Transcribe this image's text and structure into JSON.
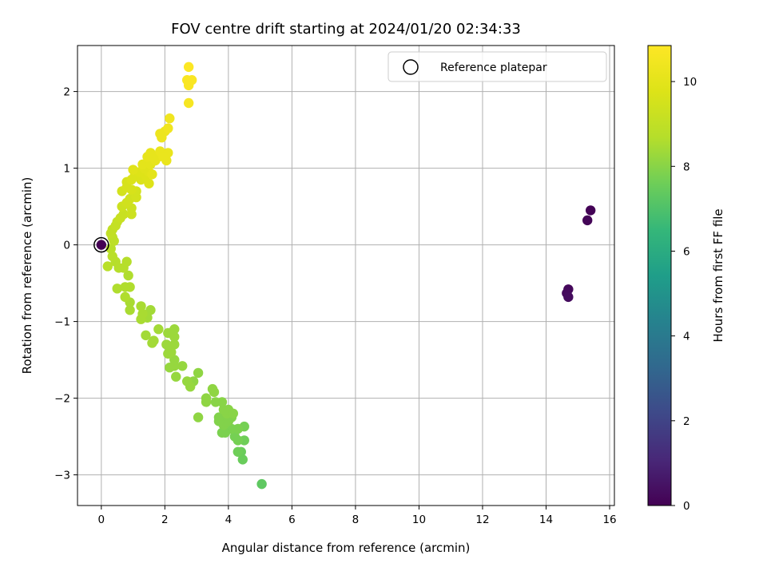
{
  "chart_data": {
    "type": "scatter",
    "title": "FOV centre drift starting at 2024/01/20 02:34:33",
    "xlabel": "Angular distance from reference (arcmin)",
    "ylabel": "Rotation from reference (arcmin)",
    "xlim": [
      -0.75,
      16.15
    ],
    "ylim": [
      -3.4,
      2.6
    ],
    "xticks": [
      0,
      2,
      4,
      6,
      8,
      10,
      12,
      14,
      16
    ],
    "yticks": [
      -3,
      -2,
      -1,
      0,
      1,
      2
    ],
    "grid": true,
    "legend": {
      "position": "top-right",
      "entries": [
        "Reference platepar"
      ]
    },
    "reference_point": {
      "x": 0,
      "y": 0
    },
    "colorbar": {
      "label": "Hours from first FF file",
      "colormap": "viridis",
      "range": [
        0,
        10.85
      ],
      "ticks": [
        0,
        2,
        4,
        6,
        8,
        10
      ]
    },
    "points": [
      [
        0.0,
        0.0,
        0.0
      ],
      [
        15.4,
        0.45,
        0.05
      ],
      [
        15.3,
        0.32,
        0.1
      ],
      [
        14.7,
        -0.58,
        0.2
      ],
      [
        14.65,
        -0.63,
        0.25
      ],
      [
        14.7,
        -0.68,
        0.3
      ],
      [
        5.05,
        -3.12,
        7.3
      ],
      [
        4.45,
        -2.8,
        7.5
      ],
      [
        4.4,
        -2.7,
        7.5
      ],
      [
        4.3,
        -2.7,
        7.6
      ],
      [
        4.5,
        -2.55,
        7.6
      ],
      [
        4.3,
        -2.55,
        7.7
      ],
      [
        4.2,
        -2.5,
        7.7
      ],
      [
        4.5,
        -2.37,
        7.7
      ],
      [
        4.3,
        -2.4,
        7.8
      ],
      [
        4.1,
        -2.4,
        7.8
      ],
      [
        3.9,
        -2.45,
        7.8
      ],
      [
        3.8,
        -2.45,
        7.8
      ],
      [
        3.85,
        -2.35,
        7.9
      ],
      [
        4.0,
        -2.3,
        7.9
      ],
      [
        3.9,
        -2.3,
        7.9
      ],
      [
        4.1,
        -2.25,
        7.9
      ],
      [
        3.7,
        -2.3,
        7.9
      ],
      [
        3.7,
        -2.25,
        7.9
      ],
      [
        3.95,
        -2.2,
        8.0
      ],
      [
        4.0,
        -2.15,
        8.0
      ],
      [
        4.15,
        -2.2,
        8.0
      ],
      [
        3.85,
        -2.15,
        8.0
      ],
      [
        3.8,
        -2.05,
        8.0
      ],
      [
        3.6,
        -2.05,
        8.0
      ],
      [
        3.55,
        -1.92,
        8.1
      ],
      [
        3.5,
        -1.88,
        8.1
      ],
      [
        3.3,
        -2.0,
        8.1
      ],
      [
        3.3,
        -2.05,
        8.1
      ],
      [
        3.05,
        -2.25,
        8.1
      ],
      [
        3.05,
        -1.67,
        8.1
      ],
      [
        2.9,
        -1.78,
        8.1
      ],
      [
        2.8,
        -1.85,
        8.2
      ],
      [
        2.7,
        -1.78,
        8.2
      ],
      [
        2.55,
        -1.58,
        8.2
      ],
      [
        2.35,
        -1.72,
        8.2
      ],
      [
        2.3,
        -1.58,
        8.2
      ],
      [
        2.3,
        -1.5,
        8.2
      ],
      [
        2.15,
        -1.6,
        8.2
      ],
      [
        2.3,
        -1.3,
        8.3
      ],
      [
        2.3,
        -1.2,
        8.3
      ],
      [
        2.3,
        -1.1,
        8.3
      ],
      [
        2.2,
        -1.4,
        8.3
      ],
      [
        2.1,
        -1.42,
        8.3
      ],
      [
        2.05,
        -1.3,
        8.3
      ],
      [
        2.1,
        -1.15,
        8.3
      ],
      [
        1.8,
        -1.1,
        8.4
      ],
      [
        1.65,
        -1.25,
        8.4
      ],
      [
        1.6,
        -1.28,
        8.4
      ],
      [
        1.4,
        -1.18,
        8.4
      ],
      [
        1.55,
        -0.85,
        8.4
      ],
      [
        1.45,
        -0.95,
        8.4
      ],
      [
        1.3,
        -0.9,
        8.5
      ],
      [
        1.25,
        -0.8,
        8.5
      ],
      [
        1.25,
        -0.97,
        8.5
      ],
      [
        0.9,
        -0.85,
        8.5
      ],
      [
        0.9,
        -0.75,
        8.5
      ],
      [
        0.75,
        -0.68,
        8.6
      ],
      [
        0.9,
        -0.55,
        8.6
      ],
      [
        0.75,
        -0.55,
        8.6
      ],
      [
        0.5,
        -0.57,
        8.6
      ],
      [
        0.85,
        -0.4,
        8.6
      ],
      [
        0.7,
        -0.3,
        8.7
      ],
      [
        0.55,
        -0.3,
        8.7
      ],
      [
        0.8,
        -0.22,
        8.7
      ],
      [
        0.45,
        -0.22,
        8.7
      ],
      [
        0.35,
        -0.15,
        8.8
      ],
      [
        0.2,
        -0.28,
        8.8
      ],
      [
        0.3,
        -0.05,
        8.8
      ],
      [
        0.4,
        0.05,
        8.9
      ],
      [
        0.35,
        0.1,
        8.9
      ],
      [
        0.3,
        0.15,
        9.0
      ],
      [
        0.35,
        0.2,
        9.0
      ],
      [
        0.45,
        0.25,
        9.1
      ],
      [
        0.5,
        0.3,
        9.1
      ],
      [
        0.6,
        0.35,
        9.2
      ],
      [
        0.7,
        0.4,
        9.2
      ],
      [
        0.95,
        0.4,
        9.3
      ],
      [
        0.95,
        0.48,
        9.3
      ],
      [
        0.65,
        0.5,
        9.3
      ],
      [
        0.8,
        0.55,
        9.4
      ],
      [
        0.9,
        0.6,
        9.4
      ],
      [
        1.1,
        0.62,
        9.5
      ],
      [
        1.1,
        0.7,
        9.5
      ],
      [
        0.65,
        0.7,
        9.5
      ],
      [
        0.8,
        0.75,
        9.6
      ],
      [
        0.95,
        0.72,
        9.6
      ],
      [
        0.8,
        0.82,
        9.6
      ],
      [
        0.95,
        0.85,
        9.7
      ],
      [
        1.05,
        0.9,
        9.7
      ],
      [
        1.25,
        0.85,
        9.7
      ],
      [
        1.5,
        0.8,
        9.8
      ],
      [
        1.4,
        0.9,
        9.8
      ],
      [
        1.2,
        0.95,
        9.8
      ],
      [
        1.0,
        0.98,
        9.9
      ],
      [
        1.35,
        1.0,
        9.9
      ],
      [
        1.5,
        0.95,
        9.9
      ],
      [
        1.6,
        0.92,
        10.0
      ],
      [
        1.3,
        1.05,
        10.0
      ],
      [
        1.55,
        1.05,
        10.0
      ],
      [
        1.7,
        1.1,
        10.1
      ],
      [
        1.45,
        1.15,
        10.1
      ],
      [
        1.55,
        1.2,
        10.1
      ],
      [
        1.8,
        1.15,
        10.1
      ],
      [
        1.85,
        1.22,
        10.2
      ],
      [
        2.1,
        1.2,
        10.2
      ],
      [
        2.05,
        1.1,
        10.2
      ],
      [
        1.95,
        1.15,
        10.2
      ],
      [
        1.9,
        1.4,
        10.3
      ],
      [
        2.0,
        1.48,
        10.3
      ],
      [
        1.85,
        1.45,
        10.3
      ],
      [
        2.1,
        1.52,
        10.4
      ],
      [
        2.15,
        1.65,
        10.4
      ],
      [
        2.75,
        1.85,
        10.6
      ],
      [
        2.75,
        2.08,
        10.7
      ],
      [
        2.7,
        2.15,
        10.7
      ],
      [
        2.85,
        2.15,
        10.7
      ],
      [
        2.75,
        2.12,
        10.7
      ],
      [
        2.75,
        2.32,
        10.8
      ]
    ]
  }
}
